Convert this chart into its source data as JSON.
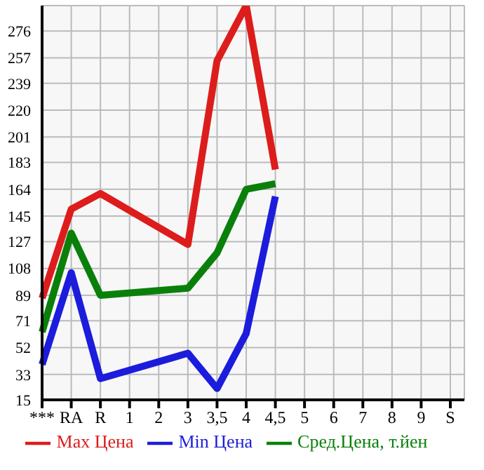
{
  "chart_data": {
    "type": "line",
    "categories": [
      "***",
      "RA",
      "R",
      "1",
      "2",
      "3",
      "3,5",
      "4",
      "4,5",
      "5",
      "6",
      "7",
      "8",
      "9",
      "S"
    ],
    "series": [
      {
        "name": "Max Цена",
        "color": "#dd1c1c",
        "values": [
          87,
          150,
          161,
          null,
          null,
          125,
          255,
          294,
          178,
          null,
          null,
          null,
          null,
          null,
          null
        ]
      },
      {
        "name": "Min Цена",
        "color": "#1c1cdd",
        "values": [
          40,
          105,
          30,
          null,
          null,
          48,
          23,
          62,
          159,
          null,
          null,
          null,
          null,
          null,
          null
        ]
      },
      {
        "name": "Сред.Цена, т.йен",
        "color": "#0a800a",
        "values": [
          63,
          133,
          89,
          null,
          null,
          94,
          119,
          164,
          168,
          null,
          null,
          null,
          null,
          null,
          null
        ]
      }
    ],
    "ylim": [
      15,
      294
    ],
    "yticks": [
      15,
      33,
      52,
      71,
      89,
      108,
      127,
      145,
      164,
      183,
      201,
      220,
      239,
      257,
      276
    ],
    "grid": true,
    "legend": "bottom",
    "marker": "none",
    "line_style": "solid"
  }
}
